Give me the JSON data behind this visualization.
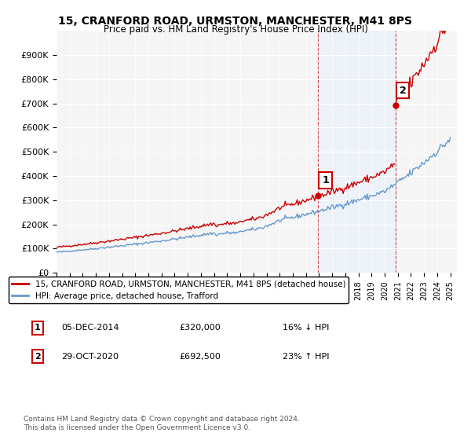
{
  "title_line1": "15, CRANFORD ROAD, URMSTON, MANCHESTER, M41 8PS",
  "title_line2": "Price paid vs. HM Land Registry's House Price Index (HPI)",
  "ylabel_ticks": [
    "£0",
    "£100K",
    "£200K",
    "£300K",
    "£400K",
    "£500K",
    "£600K",
    "£700K",
    "£800K",
    "£900K"
  ],
  "ylim": [
    0,
    1000000
  ],
  "ytick_vals": [
    0,
    100000,
    200000,
    300000,
    400000,
    500000,
    600000,
    700000,
    800000,
    900000
  ],
  "x_start_year": 1995,
  "x_end_year": 2025,
  "sale1_year": 2014.92,
  "sale1_price": 320000,
  "sale2_year": 2020.83,
  "sale2_price": 692500,
  "hpi_color": "#6699cc",
  "sale_color": "#cc0000",
  "annotation_color": "#cc0000",
  "shaded_color": "#ddeeff",
  "legend_label1": "15, CRANFORD ROAD, URMSTON, MANCHESTER, M41 8PS (detached house)",
  "legend_label2": "HPI: Average price, detached house, Trafford",
  "note1_label": "1",
  "note1_date": "05-DEC-2014",
  "note1_price": "£320,000",
  "note1_hpi": "16% ↓ HPI",
  "note2_label": "2",
  "note2_date": "29-OCT-2020",
  "note2_price": "£692,500",
  "note2_hpi": "23% ↑ HPI",
  "footer": "Contains HM Land Registry data © Crown copyright and database right 2024.\nThis data is licensed under the Open Government Licence v3.0.",
  "background_color": "#ffffff",
  "plot_bg_color": "#f5f5f5"
}
